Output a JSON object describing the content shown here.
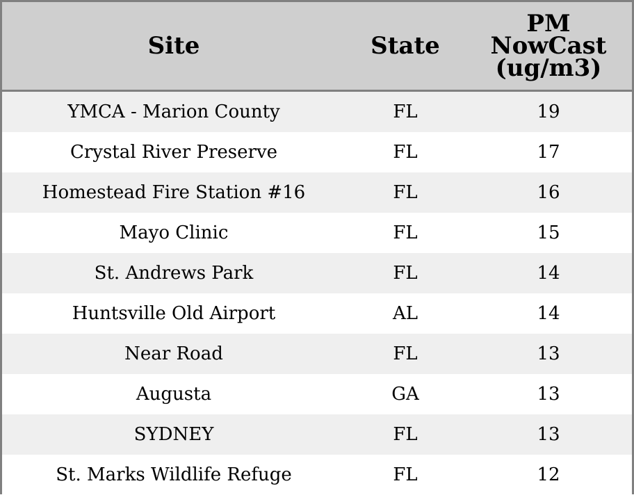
{
  "chart_data": {
    "type": "table",
    "columns": [
      "Site",
      "State",
      "PM NowCast (ug/m3)"
    ],
    "header_lines": {
      "site": "Site",
      "state": "State",
      "pm": [
        "PM",
        "NowCast",
        "(ug/m3)"
      ]
    },
    "rows": [
      {
        "site": "YMCA - Marion County",
        "state": "FL",
        "pm": "19"
      },
      {
        "site": "Crystal River Preserve",
        "state": "FL",
        "pm": "17"
      },
      {
        "site": "Homestead Fire Station #16",
        "state": "FL",
        "pm": "16"
      },
      {
        "site": "Mayo Clinic",
        "state": "FL",
        "pm": "15"
      },
      {
        "site": "St. Andrews Park",
        "state": "FL",
        "pm": "14"
      },
      {
        "site": "Huntsville Old Airport",
        "state": "AL",
        "pm": "14"
      },
      {
        "site": "Near Road",
        "state": "FL",
        "pm": "13"
      },
      {
        "site": "Augusta",
        "state": "GA",
        "pm": "13"
      },
      {
        "site": "SYDNEY",
        "state": "FL",
        "pm": "13"
      },
      {
        "site": "St. Marks Wildlife Refuge",
        "state": "FL",
        "pm": "12"
      }
    ],
    "colors": {
      "header_bg": "#cfcfcf",
      "row_alt_bg": "#efefef",
      "row_bg": "#ffffff",
      "border": "#808080"
    }
  }
}
